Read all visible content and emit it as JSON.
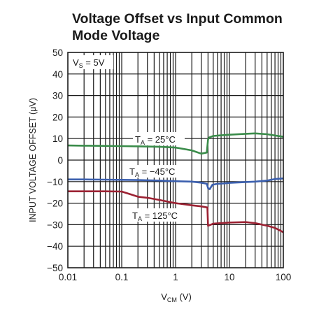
{
  "chart_data": {
    "type": "line",
    "title_lines": [
      "Voltage Offset vs Input Common",
      "Mode Voltage"
    ],
    "xlabel": {
      "main": "V",
      "sub": "CM",
      "unit": " (V)"
    },
    "ylabel": "INPUT VOLTAGE OFFSET (μV)",
    "x_scale": "log",
    "xlim": [
      0.01,
      100
    ],
    "ylim": [
      -50,
      50
    ],
    "x_ticks": [
      0.01,
      0.1,
      1,
      10,
      100
    ],
    "x_tick_labels": [
      "0.01",
      "0.1",
      "1",
      "10",
      "100"
    ],
    "y_ticks": [
      -50,
      -40,
      -30,
      -20,
      -10,
      0,
      10,
      20,
      30,
      40,
      50
    ],
    "y_tick_labels": [
      "−50",
      "−40",
      "−30",
      "−20",
      "−10",
      "0",
      "10",
      "20",
      "30",
      "40",
      "50"
    ],
    "grid": true,
    "annotations": [
      {
        "main": "V",
        "sub": "S",
        "rest": " = 5V"
      },
      {
        "main": "T",
        "sub": "A",
        "rest": " = 25°C"
      },
      {
        "main": "T",
        "sub": "A",
        "rest": " = −45°C"
      },
      {
        "main": "T",
        "sub": "A",
        "rest": " = 125°C"
      }
    ],
    "series": [
      {
        "color": "#3a8c4a",
        "x": [
          0.01,
          0.02,
          0.05,
          0.1,
          0.2,
          0.5,
          1,
          2,
          3,
          3.8,
          4,
          4.2,
          5,
          7,
          10,
          20,
          30,
          50,
          100
        ],
        "y": [
          6.8,
          6.7,
          6.6,
          6.5,
          6.4,
          6.2,
          5.8,
          4.5,
          3.0,
          3.5,
          9.5,
          10.5,
          11.2,
          11.5,
          11.8,
          12.2,
          12.4,
          12.0,
          10.8
        ]
      },
      {
        "color": "#3b5fae",
        "x": [
          0.01,
          0.02,
          0.05,
          0.1,
          0.2,
          0.5,
          1,
          2,
          3,
          3.8,
          4,
          4.3,
          4.8,
          6,
          8,
          10,
          20,
          30,
          50,
          70,
          100
        ],
        "y": [
          -9.0,
          -9.0,
          -9.1,
          -9.2,
          -9.3,
          -9.5,
          -9.8,
          -10.0,
          -10.5,
          -11.0,
          -13.0,
          -13.5,
          -11.5,
          -11.0,
          -10.8,
          -10.6,
          -10.2,
          -10.0,
          -9.5,
          -8.8,
          -8.5
        ]
      },
      {
        "color": "#9c2233",
        "x": [
          0.01,
          0.02,
          0.05,
          0.1,
          0.15,
          0.2,
          0.3,
          0.5,
          1,
          2,
          3,
          3.9,
          4,
          4.5,
          5,
          10,
          20,
          30,
          50,
          70,
          100
        ],
        "y": [
          -14.5,
          -14.5,
          -14.5,
          -14.6,
          -16.0,
          -17.0,
          -17.5,
          -18.5,
          -20.0,
          -21.0,
          -21.5,
          -22.0,
          -30.5,
          -30.0,
          -29.5,
          -29.0,
          -28.8,
          -29.3,
          -30.5,
          -31.5,
          -33.5
        ]
      }
    ]
  }
}
